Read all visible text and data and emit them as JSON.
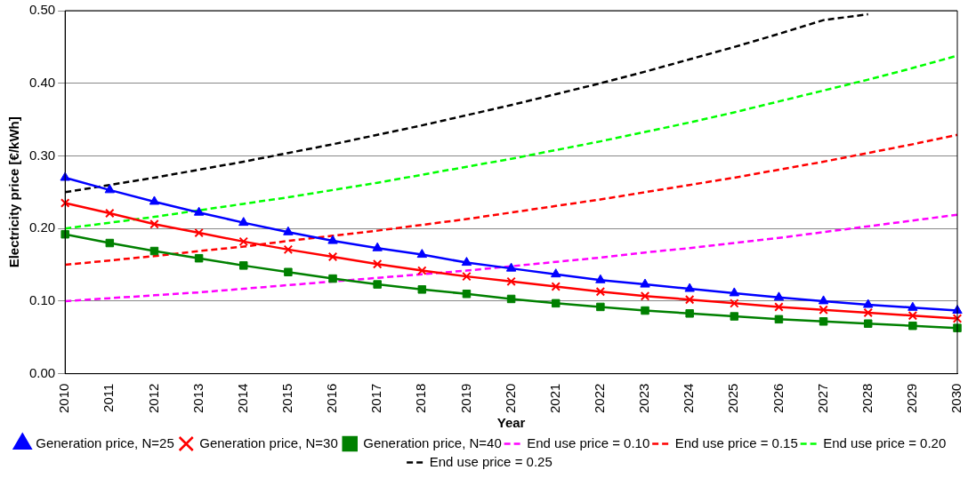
{
  "chart_data": {
    "type": "line",
    "xlabel": "Year",
    "ylabel": "Electricity price [€/kWh]",
    "categories": [
      "2010",
      "2011",
      "2012",
      "2013",
      "2014",
      "2015",
      "2016",
      "2017",
      "2018",
      "2019",
      "2020",
      "2021",
      "2022",
      "2023",
      "2024",
      "2025",
      "2026",
      "2027",
      "2028",
      "2029",
      "2030"
    ],
    "ylim": [
      0,
      0.5
    ],
    "yticks": [
      {
        "value": 0,
        "label": "0.00"
      },
      {
        "value": 0.1,
        "label": "0.10"
      },
      {
        "value": 0.2,
        "label": "0.20"
      },
      {
        "value": 0.3,
        "label": "0.30"
      },
      {
        "value": 0.4,
        "label": "0.40"
      },
      {
        "value": 0.5,
        "label": "0.50"
      }
    ],
    "grid": "y",
    "legend": "bottom",
    "series": [
      {
        "name": "Generation price, N=25",
        "color": "#0000ff",
        "marker": "triangle",
        "line_style": "solid",
        "values": [
          0.27,
          0.253,
          0.237,
          0.222,
          0.208,
          0.195,
          0.183,
          0.173,
          0.164,
          0.153,
          0.145,
          0.137,
          0.129,
          0.123,
          0.117,
          0.111,
          0.105,
          0.1,
          0.095,
          0.091,
          0.087
        ]
      },
      {
        "name": "Generation price, N=30",
        "color": "#ff0000",
        "marker": "cross",
        "line_style": "solid",
        "values": [
          0.235,
          0.221,
          0.206,
          0.194,
          0.182,
          0.171,
          0.161,
          0.151,
          0.142,
          0.134,
          0.127,
          0.12,
          0.113,
          0.107,
          0.102,
          0.097,
          0.092,
          0.088,
          0.084,
          0.08,
          0.076
        ]
      },
      {
        "name": "Generation price, N=40",
        "color": "#008000",
        "marker": "square",
        "line_style": "solid",
        "values": [
          0.192,
          0.18,
          0.169,
          0.159,
          0.149,
          0.14,
          0.131,
          0.123,
          0.116,
          0.11,
          0.103,
          0.097,
          0.092,
          0.087,
          0.083,
          0.079,
          0.075,
          0.072,
          0.069,
          0.066,
          0.063
        ]
      },
      {
        "name": "End use price = 0.10",
        "color": "#ff00ff",
        "marker": "none",
        "line_style": "dashed",
        "values": [
          0.1,
          0.104,
          0.108,
          0.112,
          0.117,
          0.122,
          0.127,
          0.132,
          0.137,
          0.142,
          0.148,
          0.154,
          0.16,
          0.167,
          0.173,
          0.18,
          0.187,
          0.195,
          0.203,
          0.211,
          0.219
        ]
      },
      {
        "name": "End use price = 0.15",
        "color": "#ff0000",
        "marker": "none",
        "line_style": "dashed",
        "values": [
          0.15,
          0.156,
          0.162,
          0.169,
          0.175,
          0.183,
          0.19,
          0.197,
          0.205,
          0.213,
          0.222,
          0.231,
          0.24,
          0.25,
          0.26,
          0.27,
          0.281,
          0.292,
          0.304,
          0.316,
          0.329
        ]
      },
      {
        "name": "End use price = 0.20",
        "color": "#00ff00",
        "marker": "none",
        "line_style": "dashed",
        "values": [
          0.2,
          0.208,
          0.216,
          0.225,
          0.234,
          0.243,
          0.253,
          0.263,
          0.274,
          0.285,
          0.296,
          0.308,
          0.32,
          0.333,
          0.346,
          0.36,
          0.375,
          0.39,
          0.405,
          0.421,
          0.438
        ]
      },
      {
        "name": "End use price = 0.25",
        "color": "#000000",
        "marker": "none",
        "line_style": "dashed",
        "values": [
          0.25,
          0.26,
          0.27,
          0.281,
          0.292,
          0.304,
          0.316,
          0.329,
          0.342,
          0.356,
          0.37,
          0.385,
          0.4,
          0.416,
          0.433,
          0.45,
          0.468,
          0.487,
          0.495,
          null,
          null
        ]
      }
    ]
  }
}
